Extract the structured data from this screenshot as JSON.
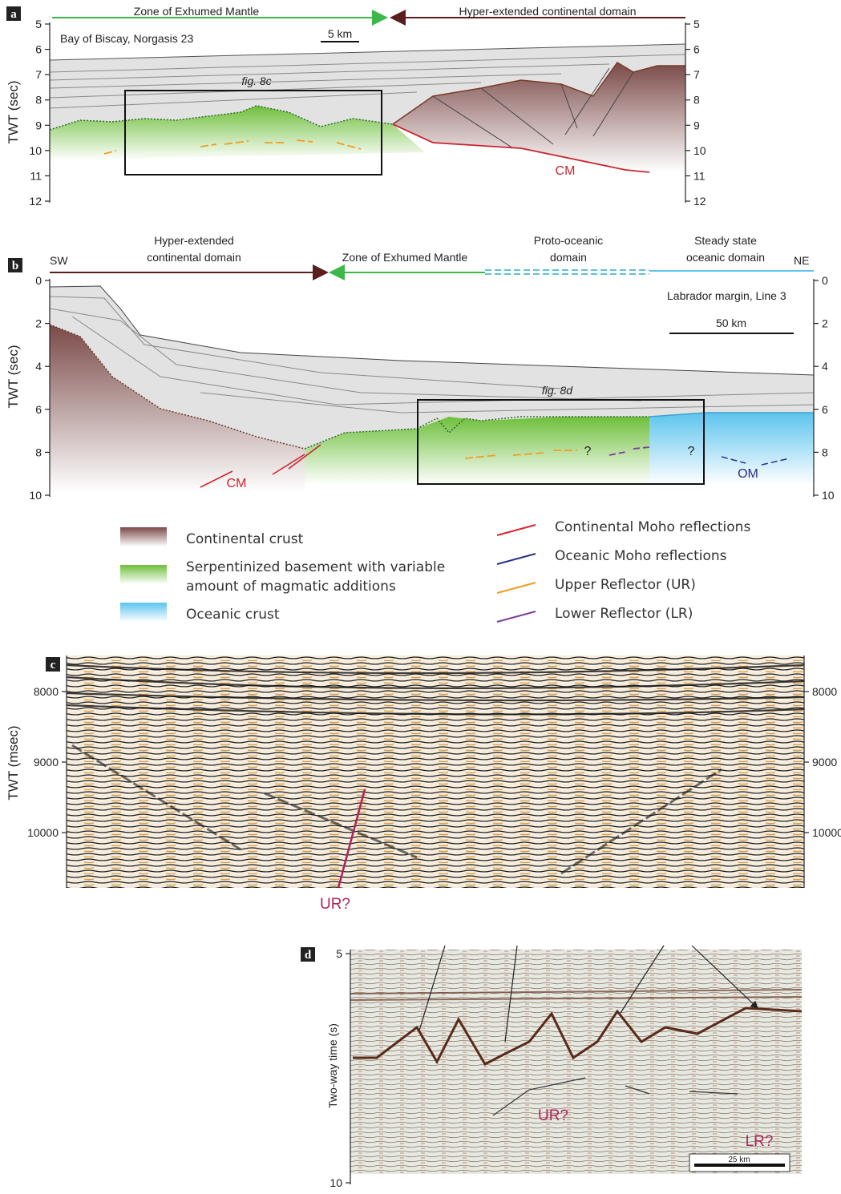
{
  "a": {
    "label": "a",
    "domains": [
      "Zone of Exhumed Mantle",
      "Hyper-extended continental domain"
    ],
    "location": "Bay of Biscay, Norgasis 23",
    "scale": "5 km",
    "box": "fig. 8c",
    "annotation": "CM",
    "axis_label": "TWT (sec)",
    "ticks": [
      5,
      6,
      7,
      8,
      9,
      10,
      11,
      12
    ]
  },
  "b": {
    "label": "b",
    "sw": "SW",
    "ne": "NE",
    "domains": [
      {
        "lines": [
          "Hyper-extended",
          "continental domain"
        ]
      },
      {
        "lines": [
          "Zone of Exhumed Mantle"
        ]
      },
      {
        "lines": [
          "Proto-oceanic",
          "domain"
        ]
      },
      {
        "lines": [
          "Steady state",
          "oceanic domain"
        ]
      }
    ],
    "location": "Labrador margin, Line 3",
    "scale": "50 km",
    "box": "fig. 8d",
    "annotations": [
      "CM",
      "OM",
      "?",
      "?"
    ],
    "axis_label": "TWT (sec)",
    "ticks": [
      0,
      2,
      4,
      6,
      8,
      10
    ]
  },
  "legend": [
    {
      "lines": [
        "Continental crust"
      ]
    },
    {
      "lines": [
        "Serpentinized basement with variable",
        "amount of magmatic additions"
      ]
    },
    {
      "lines": [
        "Oceanic crust"
      ]
    },
    {
      "lines": [
        "Continental Moho reflections"
      ]
    },
    {
      "lines": [
        "Oceanic Moho reflections"
      ]
    },
    {
      "lines": [
        "Upper Reflector (UR)"
      ]
    },
    {
      "lines": [
        "Lower Reflector (LR)"
      ]
    }
  ],
  "c": {
    "label": "c",
    "axis_label": "TWT (msec)",
    "ticks": [
      8000,
      9000,
      10000
    ],
    "annotation": "UR?"
  },
  "d": {
    "label": "d",
    "axis_label": "Two-way time (s)",
    "ticks": [
      5,
      10
    ],
    "annotations": [
      "UR?",
      "LR?"
    ],
    "scale": "25 km"
  }
}
